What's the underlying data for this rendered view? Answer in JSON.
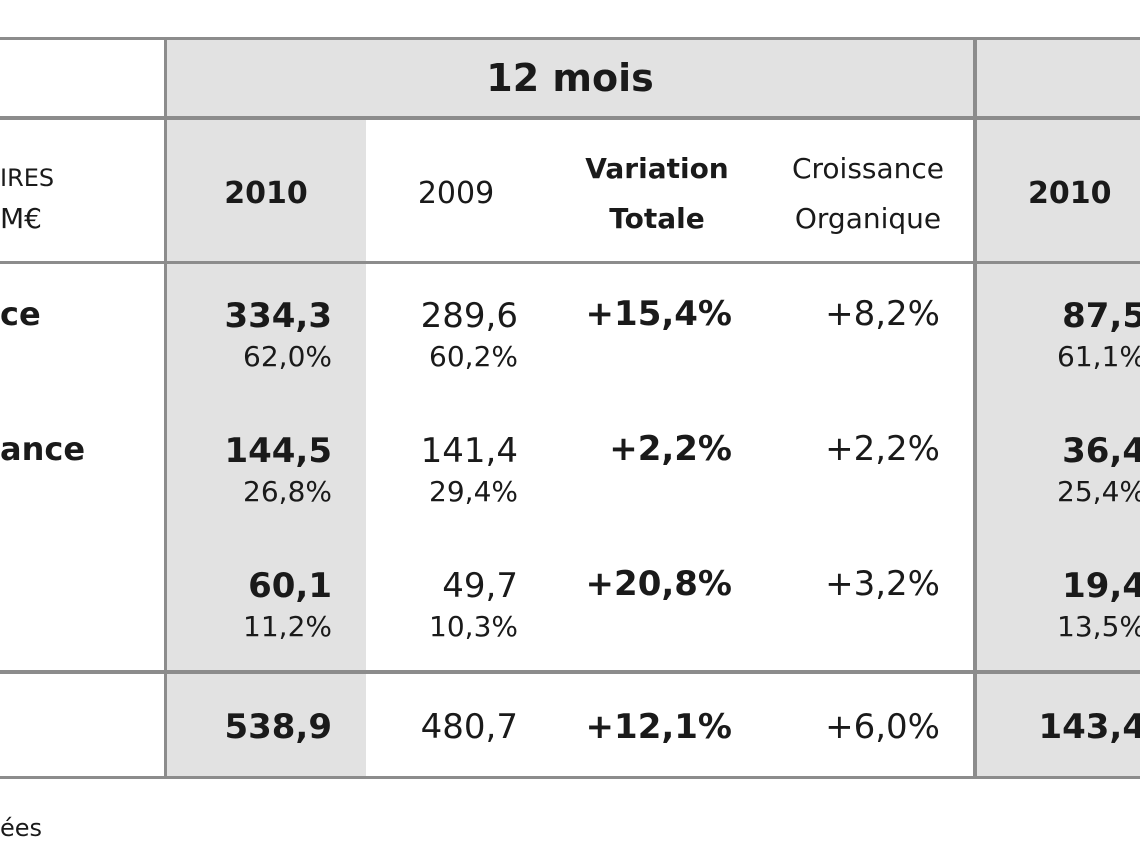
{
  "header": {
    "period_title": "12 mois",
    "row_label_line1": "IRES",
    "row_label_line2": "M€"
  },
  "columns": {
    "col_2010": "2010",
    "col_2009": "2009",
    "variation_line1": "Variation",
    "variation_line2": "Totale",
    "croissance_line1": "Croissance",
    "croissance_line2": "Organique",
    "col_2010_q": "2010"
  },
  "rows": [
    {
      "label": "ce",
      "v2010": "334,3",
      "p2010": "62,0%",
      "v2009": "289,6",
      "p2009": "60,2%",
      "variation": "+15,4%",
      "croissance": "+8,2%",
      "q2010": "87,5",
      "qp2010": "61,1%"
    },
    {
      "label": "ance",
      "v2010": "144,5",
      "p2010": "26,8%",
      "v2009": "141,4",
      "p2009": "29,4%",
      "variation": "+2,2%",
      "croissance": "+2,2%",
      "q2010": "36,4",
      "qp2010": "25,4%"
    },
    {
      "label": "",
      "v2010": "60,1",
      "p2010": "11,2%",
      "v2009": "49,7",
      "p2009": "10,3%",
      "variation": "+20,8%",
      "croissance": "+3,2%",
      "q2010": "19,4",
      "qp2010": "13,5%"
    }
  ],
  "total": {
    "v2010": "538,9",
    "v2009": "480,7",
    "variation": "+12,1%",
    "croissance": "+6,0%",
    "q2010": "143,4"
  },
  "footnote": "ées",
  "colors": {
    "shade": "#e2e2e2",
    "border": "#8c8c8c",
    "text": "#1a1a1a"
  }
}
